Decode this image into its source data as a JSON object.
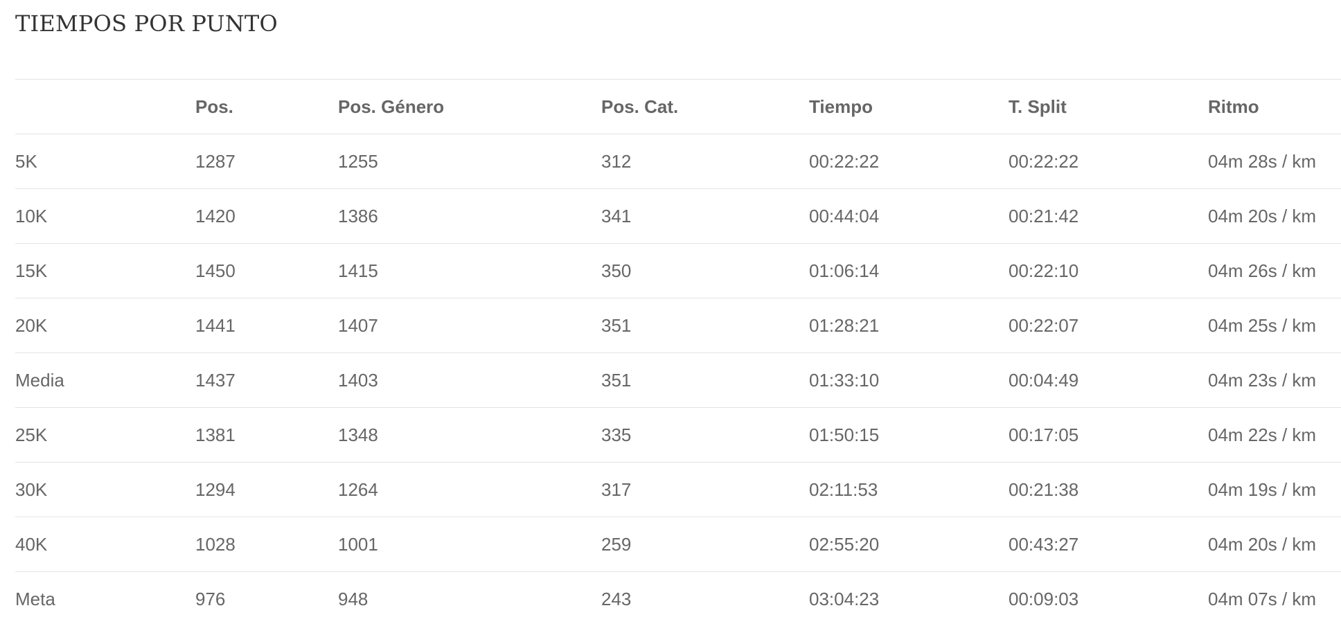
{
  "section": {
    "title": "TIEMPOS POR PUNTO"
  },
  "table": {
    "headers": [
      "",
      "Pos.",
      "Pos. Género",
      "Pos. Cat.",
      "Tiempo",
      "T. Split",
      "Ritmo"
    ],
    "rows": [
      [
        "5K",
        "1287",
        "1255",
        "312",
        "00:22:22",
        "00:22:22",
        "04m 28s / km"
      ],
      [
        "10K",
        "1420",
        "1386",
        "341",
        "00:44:04",
        "00:21:42",
        "04m 20s / km"
      ],
      [
        "15K",
        "1450",
        "1415",
        "350",
        "01:06:14",
        "00:22:10",
        "04m 26s / km"
      ],
      [
        "20K",
        "1441",
        "1407",
        "351",
        "01:28:21",
        "00:22:07",
        "04m 25s / km"
      ],
      [
        "Media",
        "1437",
        "1403",
        "351",
        "01:33:10",
        "00:04:49",
        "04m 23s / km"
      ],
      [
        "25K",
        "1381",
        "1348",
        "335",
        "01:50:15",
        "00:17:05",
        "04m 22s / km"
      ],
      [
        "30K",
        "1294",
        "1264",
        "317",
        "02:11:53",
        "00:21:38",
        "04m 19s / km"
      ],
      [
        "40K",
        "1028",
        "1001",
        "259",
        "02:55:20",
        "00:43:27",
        "04m 20s / km"
      ],
      [
        "Meta",
        "976",
        "948",
        "243",
        "03:04:23",
        "00:09:03",
        "04m 07s / km"
      ]
    ]
  }
}
